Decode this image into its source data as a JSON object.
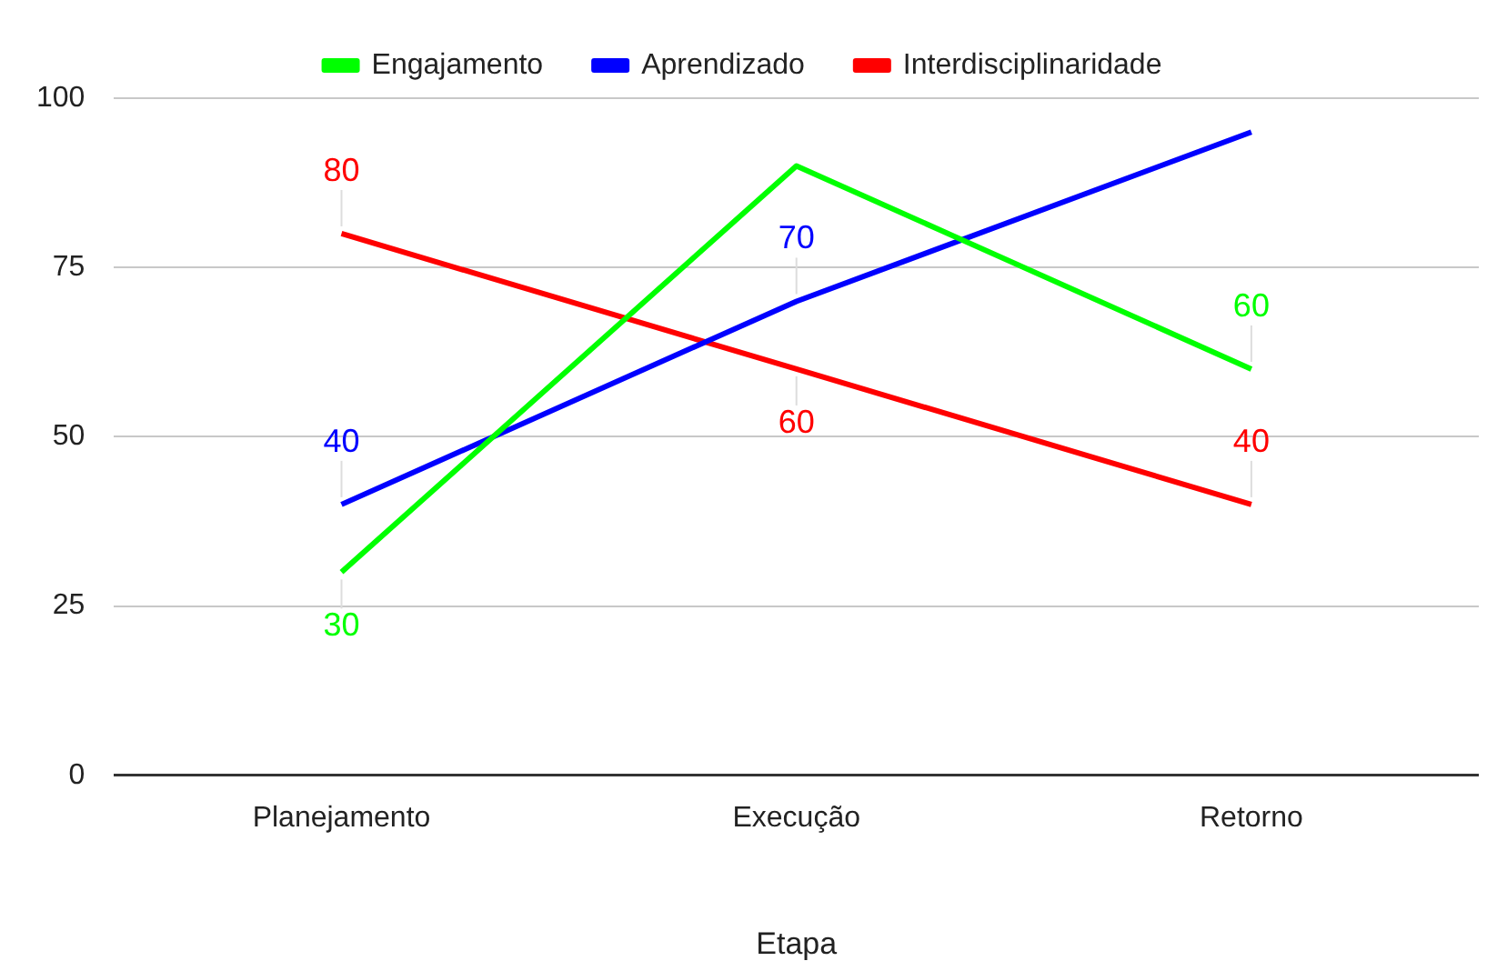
{
  "chart_data": {
    "type": "line",
    "xlabel": "Etapa",
    "categories": [
      "Planejamento",
      "Execução",
      "Retorno"
    ],
    "series": [
      {
        "name": "Engajamento",
        "color": "#00ff00",
        "values": [
          30,
          90,
          60
        ],
        "value_labels": [
          "30",
          null,
          "60"
        ]
      },
      {
        "name": "Aprendizado",
        "color": "#0000ff",
        "values": [
          40,
          70,
          95
        ],
        "value_labels": [
          "40",
          "70",
          null
        ]
      },
      {
        "name": "Interdisciplinaridade",
        "color": "#ff0000",
        "values": [
          80,
          60,
          40
        ],
        "value_labels": [
          "80",
          "60",
          "40"
        ]
      }
    ],
    "ylim": [
      0,
      100
    ],
    "yticks": [
      0,
      25,
      50,
      75,
      100
    ],
    "grid": "y",
    "legend": "top",
    "marker": "none",
    "line_style": "solid"
  }
}
